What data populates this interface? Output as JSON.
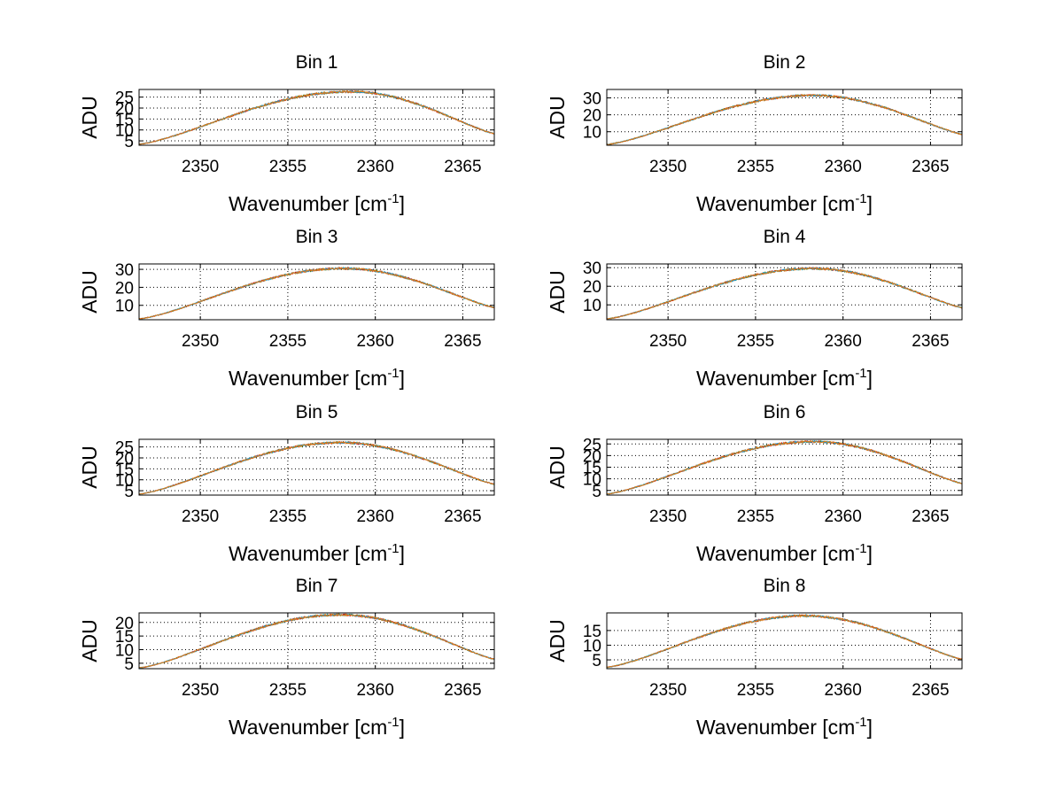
{
  "figure": {
    "rows": 4,
    "cols": 2,
    "background": "#ffffff",
    "grid_color": "#000000",
    "series_colors": [
      "#1f7a1f",
      "#d11414",
      "#1a9fd6",
      "#e07a10"
    ]
  },
  "chart_data": [
    {
      "type": "line",
      "title": "Bin 1",
      "xlabel": "Wavenumber [cm",
      "xlabel_sup": "-1",
      "xlabel_close": "]",
      "ylabel": "ADU",
      "xlim": [
        2346.5,
        2366.8
      ],
      "ylim": [
        3,
        28.5
      ],
      "xticks": [
        2350,
        2355,
        2360,
        2365
      ],
      "yticks": [
        5,
        10,
        15,
        20,
        25
      ],
      "xtick_labels": [
        "2350",
        "2355",
        "2360",
        "2365"
      ],
      "ytick_labels": [
        "5",
        "10",
        "15",
        "20",
        "25"
      ],
      "grid": "dotted",
      "peak_x": 2358.6,
      "peak_y": 27.5,
      "left_y": 3.5,
      "right_y": 8.3
    },
    {
      "type": "line",
      "title": "Bin 2",
      "xlabel": "Wavenumber [cm",
      "xlabel_sup": "-1",
      "xlabel_close": "]",
      "ylabel": "ADU",
      "xlim": [
        2346.5,
        2366.8
      ],
      "ylim": [
        2,
        35
      ],
      "xticks": [
        2350,
        2355,
        2360,
        2365
      ],
      "yticks": [
        10,
        20,
        30
      ],
      "xtick_labels": [
        "2350",
        "2355",
        "2360",
        "2365"
      ],
      "ytick_labels": [
        "10",
        "20",
        "30"
      ],
      "grid": "dotted",
      "peak_x": 2358.3,
      "peak_y": 31.5,
      "left_y": 2.5,
      "right_y": 8.5
    },
    {
      "type": "line",
      "title": "Bin 3",
      "xlabel": "Wavenumber [cm",
      "xlabel_sup": "-1",
      "xlabel_close": "]",
      "ylabel": "ADU",
      "xlim": [
        2346.5,
        2366.8
      ],
      "ylim": [
        2,
        33
      ],
      "xticks": [
        2350,
        2355,
        2360,
        2365
      ],
      "yticks": [
        10,
        20,
        30
      ],
      "xtick_labels": [
        "2350",
        "2355",
        "2360",
        "2365"
      ],
      "ytick_labels": [
        "10",
        "20",
        "30"
      ],
      "grid": "dotted",
      "peak_x": 2358.2,
      "peak_y": 30.5,
      "left_y": 2.5,
      "right_y": 8.8
    },
    {
      "type": "line",
      "title": "Bin 4",
      "xlabel": "Wavenumber [cm",
      "xlabel_sup": "-1",
      "xlabel_close": "]",
      "ylabel": "ADU",
      "xlim": [
        2346.5,
        2366.8
      ],
      "ylim": [
        2,
        32
      ],
      "xticks": [
        2350,
        2355,
        2360,
        2365
      ],
      "yticks": [
        10,
        20,
        30
      ],
      "xtick_labels": [
        "2350",
        "2355",
        "2360",
        "2365"
      ],
      "ytick_labels": [
        "10",
        "20",
        "30"
      ],
      "grid": "dotted",
      "peak_x": 2358.3,
      "peak_y": 29.5,
      "left_y": 2.5,
      "right_y": 8.5
    },
    {
      "type": "line",
      "title": "Bin 5",
      "xlabel": "Wavenumber [cm",
      "xlabel_sup": "-1",
      "xlabel_close": "]",
      "ylabel": "ADU",
      "xlim": [
        2346.5,
        2366.8
      ],
      "ylim": [
        3,
        28.5
      ],
      "xticks": [
        2350,
        2355,
        2360,
        2365
      ],
      "yticks": [
        5,
        10,
        15,
        20,
        25
      ],
      "xtick_labels": [
        "2350",
        "2355",
        "2360",
        "2365"
      ],
      "ytick_labels": [
        "5",
        "10",
        "15",
        "20",
        "25"
      ],
      "grid": "dotted",
      "peak_x": 2358.0,
      "peak_y": 27.0,
      "left_y": 3.5,
      "right_y": 8.0
    },
    {
      "type": "line",
      "title": "Bin 6",
      "xlabel": "Wavenumber [cm",
      "xlabel_sup": "-1",
      "xlabel_close": "]",
      "ylabel": "ADU",
      "xlim": [
        2346.5,
        2366.8
      ],
      "ylim": [
        3,
        27
      ],
      "xticks": [
        2350,
        2355,
        2360,
        2365
      ],
      "yticks": [
        5,
        10,
        15,
        20,
        25
      ],
      "xtick_labels": [
        "2350",
        "2355",
        "2360",
        "2365"
      ],
      "ytick_labels": [
        "5",
        "10",
        "15",
        "20",
        "25"
      ],
      "grid": "dotted",
      "peak_x": 2358.3,
      "peak_y": 26.0,
      "left_y": 3.5,
      "right_y": 8.0
    },
    {
      "type": "line",
      "title": "Bin 7",
      "xlabel": "Wavenumber [cm",
      "xlabel_sup": "-1",
      "xlabel_close": "]",
      "ylabel": "ADU",
      "xlim": [
        2346.5,
        2366.8
      ],
      "ylim": [
        3,
        23.5
      ],
      "xticks": [
        2350,
        2355,
        2360,
        2365
      ],
      "yticks": [
        5,
        10,
        15,
        20
      ],
      "xtick_labels": [
        "2350",
        "2355",
        "2360",
        "2365"
      ],
      "ytick_labels": [
        "5",
        "10",
        "15",
        "20"
      ],
      "grid": "dotted",
      "peak_x": 2358.0,
      "peak_y": 22.8,
      "left_y": 3.3,
      "right_y": 6.5
    },
    {
      "type": "line",
      "title": "Bin 8",
      "xlabel": "Wavenumber [cm",
      "xlabel_sup": "-1",
      "xlabel_close": "]",
      "ylabel": "ADU",
      "xlim": [
        2346.5,
        2366.8
      ],
      "ylim": [
        2,
        21
      ],
      "xticks": [
        2350,
        2355,
        2360,
        2365
      ],
      "yticks": [
        5,
        10,
        15
      ],
      "xtick_labels": [
        "2350",
        "2355",
        "2360",
        "2365"
      ],
      "ytick_labels": [
        "5",
        "10",
        "15"
      ],
      "grid": "dotted",
      "peak_x": 2357.8,
      "peak_y": 20.0,
      "left_y": 2.5,
      "right_y": 5.2
    }
  ]
}
